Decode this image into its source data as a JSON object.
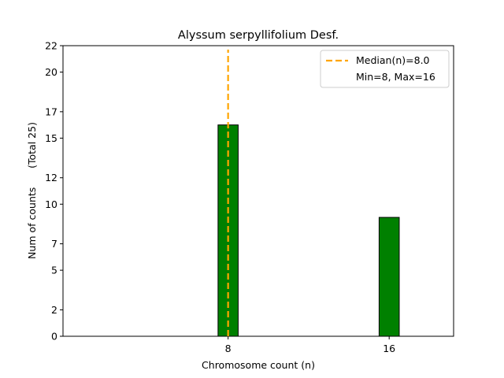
{
  "chart_data": {
    "type": "bar",
    "title": "Alyssum serpyllifolium Desf.",
    "xlabel": "Chromosome count (n)",
    "ylabel": "Num of counts      (Total 25)",
    "x": [
      8,
      16
    ],
    "values": [
      16,
      9
    ],
    "xticks": [
      8,
      16
    ],
    "yticks": [
      0,
      2,
      5,
      7,
      10,
      12,
      15,
      17,
      20,
      22
    ],
    "xlim": [
      -0.2,
      19.2
    ],
    "ylim": [
      0,
      22
    ],
    "bar_width": 1,
    "median": 8,
    "legend": {
      "placement": "top-right",
      "entries": [
        "Median(n)=8.0",
        "Min=8, Max=16"
      ]
    },
    "bar_color": "#008000",
    "median_color": "#FFA500",
    "grid": false
  }
}
